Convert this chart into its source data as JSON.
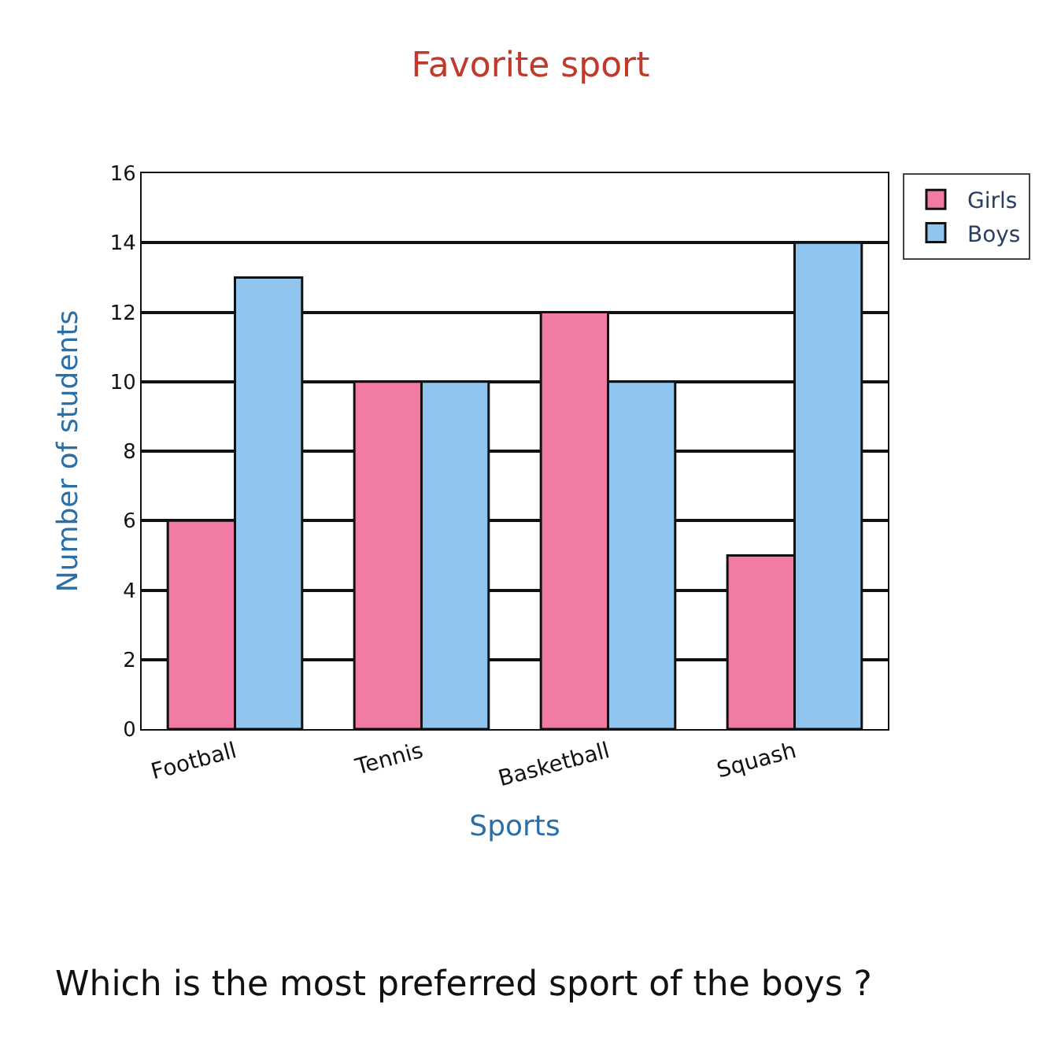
{
  "chart_data": {
    "type": "bar",
    "title": "Favorite sport",
    "xlabel": "Sports",
    "ylabel": "Number of students",
    "categories": [
      "Football",
      "Tennis",
      "Basketball",
      "Squash"
    ],
    "series": [
      {
        "name": "Girls",
        "color": "#f27ba3",
        "values": [
          6,
          10,
          12,
          5
        ]
      },
      {
        "name": "Boys",
        "color": "#8fc5ef",
        "values": [
          13,
          10,
          10,
          14
        ]
      }
    ],
    "ylim": [
      0,
      16
    ],
    "yticks": [
      0,
      2,
      4,
      6,
      8,
      10,
      12,
      14,
      16
    ],
    "grid": "y",
    "legend": "top right",
    "annotations": [
      "Which is the most preferred sport of the boys ?"
    ]
  }
}
